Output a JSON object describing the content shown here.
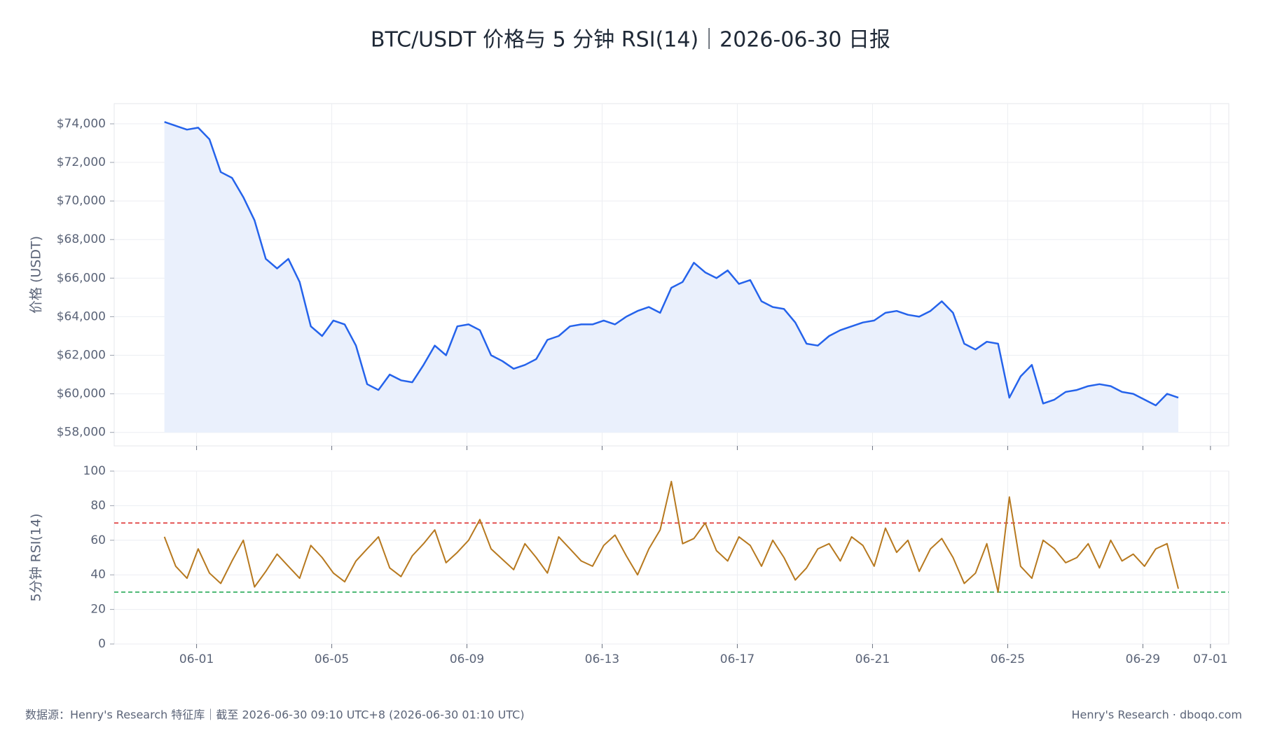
{
  "title": "BTC/USDT 价格与 5 分钟 RSI(14)｜2026-06-30 日报",
  "footer": {
    "source": "数据源：Henry's Research 特征库｜截至 2026-06-30 09:10 UTC+8 (2026-06-30 01:10 UTC)",
    "brand": "Henry's Research · dboqo.com"
  },
  "chart_data": [
    {
      "type": "area",
      "ylabel": "价格 (USDT)",
      "grid": true,
      "x": [
        "05-31 01:10",
        "05-31 09:10",
        "05-31 17:10",
        "06-01 01:10",
        "06-01 09:10",
        "06-01 17:10",
        "06-02 01:10",
        "06-02 09:10",
        "06-02 17:10",
        "06-03 01:10",
        "06-03 09:10",
        "06-03 17:10",
        "06-04 01:10",
        "06-04 09:10",
        "06-04 17:10",
        "06-05 01:10",
        "06-05 09:10",
        "06-05 17:10",
        "06-06 01:10",
        "06-06 09:10",
        "06-06 17:10",
        "06-07 01:10",
        "06-07 09:10",
        "06-07 17:10",
        "06-08 01:10",
        "06-08 09:10",
        "06-08 17:10",
        "06-09 01:10",
        "06-09 09:10",
        "06-09 17:10",
        "06-10 01:10",
        "06-10 09:10",
        "06-10 17:10",
        "06-11 01:10",
        "06-11 09:10",
        "06-11 17:10",
        "06-12 01:10",
        "06-12 09:10",
        "06-12 17:10",
        "06-13 01:10",
        "06-13 09:10",
        "06-13 17:10",
        "06-14 01:10",
        "06-14 09:10",
        "06-14 17:10",
        "06-15 01:10",
        "06-15 09:10",
        "06-15 17:10",
        "06-16 01:10",
        "06-16 09:10",
        "06-16 17:10",
        "06-17 01:10",
        "06-17 09:10",
        "06-17 17:10",
        "06-18 01:10",
        "06-18 09:10",
        "06-18 17:10",
        "06-19 01:10",
        "06-19 09:10",
        "06-19 17:10",
        "06-20 01:10",
        "06-20 09:10",
        "06-20 17:10",
        "06-21 01:10",
        "06-21 09:10",
        "06-21 17:10",
        "06-22 01:10",
        "06-22 09:10",
        "06-22 17:10",
        "06-23 01:10",
        "06-23 09:10",
        "06-23 17:10",
        "06-24 01:10",
        "06-24 09:10",
        "06-24 17:10",
        "06-25 01:10",
        "06-25 09:10",
        "06-25 17:10",
        "06-26 01:10",
        "06-26 09:10",
        "06-26 17:10",
        "06-27 01:10",
        "06-27 09:10",
        "06-27 17:10",
        "06-28 01:10",
        "06-28 09:10",
        "06-28 17:10",
        "06-29 01:10",
        "06-29 09:10",
        "06-29 17:10",
        "06-30 01:10"
      ],
      "series": [
        {
          "color": "#2563eb",
          "fill": "#eaf0fc",
          "values": [
            74100,
            73900,
            73700,
            73800,
            73200,
            71500,
            71200,
            70200,
            69000,
            67000,
            66500,
            67000,
            65800,
            63500,
            63000,
            63800,
            63600,
            62500,
            60500,
            60200,
            61000,
            60700,
            60600,
            61500,
            62500,
            62000,
            63500,
            63600,
            63300,
            62000,
            61700,
            61300,
            61500,
            61800,
            62800,
            63000,
            63500,
            63600,
            63600,
            63800,
            63600,
            64000,
            64300,
            64500,
            64200,
            65500,
            65800,
            66800,
            66300,
            66000,
            66400,
            65700,
            65900,
            64800,
            64500,
            64400,
            63700,
            62600,
            62500,
            63000,
            63300,
            63500,
            63700,
            63800,
            64200,
            64300,
            64100,
            64000,
            64300,
            64800,
            64200,
            62600,
            62300,
            62700,
            62600,
            59800,
            60900,
            61500,
            59500,
            59700,
            60100,
            60200,
            60400,
            60500,
            60400,
            60100,
            60000,
            59700,
            59400,
            60000,
            59800
          ]
        }
      ],
      "ylim": [
        57300,
        75050
      ],
      "yticks": [
        {
          "value": 58000,
          "label": "$58,000"
        },
        {
          "value": 60000,
          "label": "$60,000"
        },
        {
          "value": 62000,
          "label": "$62,000"
        },
        {
          "value": 64000,
          "label": "$64,000"
        },
        {
          "value": 66000,
          "label": "$66,000"
        },
        {
          "value": 68000,
          "label": "$68,000"
        },
        {
          "value": 70000,
          "label": "$70,000"
        },
        {
          "value": 72000,
          "label": "$72,000"
        },
        {
          "value": 74000,
          "label": "$74,000"
        }
      ]
    },
    {
      "type": "line",
      "ylabel": "5分钟 RSI(14)",
      "grid": true,
      "x": [
        "05-31 01:10",
        "05-31 09:10",
        "05-31 17:10",
        "06-01 01:10",
        "06-01 09:10",
        "06-01 17:10",
        "06-02 01:10",
        "06-02 09:10",
        "06-02 17:10",
        "06-03 01:10",
        "06-03 09:10",
        "06-03 17:10",
        "06-04 01:10",
        "06-04 09:10",
        "06-04 17:10",
        "06-05 01:10",
        "06-05 09:10",
        "06-05 17:10",
        "06-06 01:10",
        "06-06 09:10",
        "06-06 17:10",
        "06-07 01:10",
        "06-07 09:10",
        "06-07 17:10",
        "06-08 01:10",
        "06-08 09:10",
        "06-08 17:10",
        "06-09 01:10",
        "06-09 09:10",
        "06-09 17:10",
        "06-10 01:10",
        "06-10 09:10",
        "06-10 17:10",
        "06-11 01:10",
        "06-11 09:10",
        "06-11 17:10",
        "06-12 01:10",
        "06-12 09:10",
        "06-12 17:10",
        "06-13 01:10",
        "06-13 09:10",
        "06-13 17:10",
        "06-14 01:10",
        "06-14 09:10",
        "06-14 17:10",
        "06-15 01:10",
        "06-15 09:10",
        "06-15 17:10",
        "06-16 01:10",
        "06-16 09:10",
        "06-16 17:10",
        "06-17 01:10",
        "06-17 09:10",
        "06-17 17:10",
        "06-18 01:10",
        "06-18 09:10",
        "06-18 17:10",
        "06-19 01:10",
        "06-19 09:10",
        "06-19 17:10",
        "06-20 01:10",
        "06-20 09:10",
        "06-20 17:10",
        "06-21 01:10",
        "06-21 09:10",
        "06-21 17:10",
        "06-22 01:10",
        "06-22 09:10",
        "06-22 17:10",
        "06-23 01:10",
        "06-23 09:10",
        "06-23 17:10",
        "06-24 01:10",
        "06-24 09:10",
        "06-24 17:10",
        "06-25 01:10",
        "06-25 09:10",
        "06-25 17:10",
        "06-26 01:10",
        "06-26 09:10",
        "06-26 17:10",
        "06-27 01:10",
        "06-27 09:10",
        "06-27 17:10",
        "06-28 01:10",
        "06-28 09:10",
        "06-28 17:10",
        "06-29 01:10",
        "06-29 09:10",
        "06-29 17:10",
        "06-30 01:10"
      ],
      "series": [
        {
          "color": "#b7791f",
          "values": [
            62,
            45,
            38,
            55,
            41,
            35,
            48,
            60,
            33,
            42,
            52,
            45,
            38,
            57,
            50,
            41,
            36,
            48,
            55,
            62,
            44,
            39,
            51,
            58,
            66,
            47,
            53,
            60,
            72,
            55,
            49,
            43,
            58,
            50,
            41,
            62,
            55,
            48,
            45,
            57,
            63,
            51,
            40,
            55,
            66,
            94,
            58,
            61,
            70,
            54,
            48,
            62,
            57,
            45,
            60,
            50,
            37,
            44,
            55,
            58,
            48,
            62,
            57,
            45,
            67,
            53,
            60,
            42,
            55,
            61,
            50,
            35,
            41,
            58,
            30,
            85,
            45,
            38,
            60,
            55,
            47,
            50,
            58,
            44,
            60,
            48,
            52,
            45,
            55,
            58,
            32
          ]
        }
      ],
      "hlines": [
        {
          "value": 70,
          "color": "#dc2626"
        },
        {
          "value": 30,
          "color": "#16a34a"
        }
      ],
      "xlim": [
        "05-29 13:30",
        "07-01 13:00"
      ],
      "xticks": [
        "06-01",
        "06-05",
        "06-09",
        "06-13",
        "06-17",
        "06-21",
        "06-25",
        "06-29",
        "07-01"
      ],
      "ylim": [
        0,
        100
      ],
      "yticks": [
        0,
        20,
        40,
        60,
        80,
        100
      ]
    }
  ]
}
